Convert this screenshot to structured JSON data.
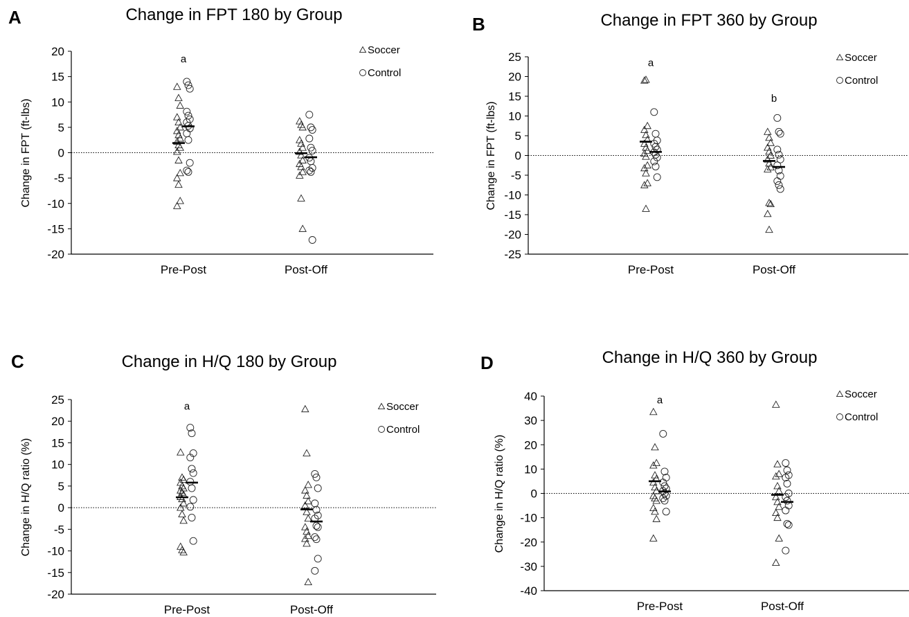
{
  "chart_data": [
    {
      "panel_label": "A",
      "type": "scatter",
      "title": "Change in FPT 180 by Group",
      "ylabel": "Change in FPT (ft-lbs)",
      "xlabel": "",
      "categories": [
        "Pre-Post",
        "Post-Off"
      ],
      "ylim": [
        -20,
        20
      ],
      "yticks": [
        20,
        15,
        10,
        5,
        0,
        -5,
        -10,
        -15,
        -20
      ],
      "zero_line": "dotted",
      "legend": {
        "placement": "top-right",
        "entries": [
          "Soccer",
          "Control"
        ],
        "markers": [
          "triangle",
          "circle"
        ]
      },
      "annotations": [
        {
          "category": "Pre-Post",
          "text": "a",
          "y": 18.5
        }
      ],
      "series": [
        {
          "name": "Soccer",
          "marker": "triangle",
          "values": [
            [
              13,
              10.8,
              9.3,
              7,
              6,
              5,
              4.3,
              3.5,
              2.8,
              2.2,
              1.5,
              1,
              0.2,
              -1.5,
              -4,
              -5,
              -6.3,
              -9.5,
              -10.5
            ],
            [
              6.2,
              5.5,
              5,
              2.5,
              1.8,
              1,
              0.2,
              -0.5,
              -1.5,
              -2.2,
              -2.8,
              -3.8,
              -4.5,
              -9,
              -15
            ]
          ],
          "means": [
            1.9,
            -0.1
          ]
        },
        {
          "name": "Control",
          "marker": "circle",
          "values": [
            [
              14,
              13.3,
              12.6,
              8.1,
              7.3,
              6.6,
              6,
              5.3,
              4.8,
              3.8,
              2.5,
              -2,
              -3.5,
              -3.8
            ],
            [
              7.5,
              5,
              4.5,
              2.8,
              1,
              0.4,
              -1,
              -1.7,
              -3,
              -3.5,
              -3.8,
              -17.2
            ]
          ],
          "means": [
            5.2,
            -0.9
          ]
        }
      ]
    },
    {
      "panel_label": "B",
      "type": "scatter",
      "title": "Change in FPT 360 by Group",
      "ylabel": "Change in FPT (ft-lbs)",
      "xlabel": "",
      "categories": [
        "Pre-Post",
        "Post-Off"
      ],
      "ylim": [
        -25,
        25
      ],
      "yticks": [
        25,
        20,
        15,
        10,
        5,
        0,
        -5,
        -10,
        -15,
        -20,
        -25
      ],
      "zero_line": "dotted",
      "legend": {
        "placement": "top-right",
        "entries": [
          "Soccer",
          "Control"
        ],
        "markers": [
          "triangle",
          "circle"
        ]
      },
      "annotations": [
        {
          "category": "Pre-Post",
          "text": "a",
          "y": 23.5
        },
        {
          "category": "Post-Off",
          "text": "b",
          "y": 14.5
        }
      ],
      "series": [
        {
          "name": "Soccer",
          "marker": "triangle",
          "values": [
            [
              19,
              19.2,
              7.5,
              6.5,
              5.2,
              4,
              3,
              2,
              1.2,
              0.5,
              -0.3,
              -2.5,
              -3.2,
              -4.5,
              -7,
              -7.5,
              -13.5
            ],
            [
              6,
              4.5,
              3.2,
              2,
              1,
              0,
              -1,
              -2,
              -3,
              -3.5,
              -12,
              -12.3,
              -14.8,
              -18.8
            ]
          ],
          "means": [
            3.5,
            -1.4
          ]
        },
        {
          "name": "Control",
          "marker": "circle",
          "values": [
            [
              11,
              5.5,
              3.8,
              3,
              2.2,
              1.5,
              0.8,
              0.2,
              -0.5,
              -1.5,
              -2.8,
              -5.5
            ],
            [
              9.5,
              6,
              5.5,
              1.5,
              0.2,
              -1,
              -2.5,
              -3.8,
              -5.2,
              -6.5,
              -7.5,
              -8.5
            ]
          ],
          "means": [
            0.9,
            -2.9
          ]
        }
      ]
    },
    {
      "panel_label": "C",
      "type": "scatter",
      "title": "Change in H/Q 180 by Group",
      "ylabel": "Change in H/Q ratio (%)",
      "xlabel": "",
      "categories": [
        "Pre-Post",
        "Post-Off"
      ],
      "ylim": [
        -20,
        25
      ],
      "yticks": [
        25,
        20,
        15,
        10,
        5,
        0,
        -5,
        -10,
        -15,
        -20
      ],
      "zero_line": "dotted",
      "legend": {
        "placement": "top-right",
        "entries": [
          "Soccer",
          "Control"
        ],
        "markers": [
          "triangle",
          "circle"
        ]
      },
      "annotations": [
        {
          "category": "Pre-Post",
          "text": "a",
          "y": 23.5
        }
      ],
      "series": [
        {
          "name": "Soccer",
          "marker": "triangle",
          "values": [
            [
              12.8,
              7,
              6.5,
              5.8,
              5,
              4.5,
              4,
              3.5,
              3,
              2.5,
              2,
              1,
              0,
              -1.5,
              -3,
              -9,
              -9.8,
              -10.3
            ],
            [
              22.8,
              12.6,
              5.3,
              4,
              2.8,
              1.5,
              0.5,
              -1,
              -2.5,
              -4.5,
              -5.5,
              -6.5,
              -7.2,
              -8.3,
              -17.2
            ]
          ],
          "means": [
            2.4,
            -0.4
          ]
        },
        {
          "name": "Control",
          "marker": "circle",
          "values": [
            [
              18.5,
              17.2,
              12.6,
              11.6,
              9,
              8,
              6,
              4.5,
              1.8,
              0.2,
              -2.3,
              -7.7
            ],
            [
              7.8,
              7,
              4.5,
              1,
              -0.5,
              -1.8,
              -2.5,
              -4.2,
              -4.5,
              -6.8,
              -7.3,
              -11.8,
              -14.6
            ]
          ],
          "means": [
            5.8,
            -3.2
          ]
        }
      ]
    },
    {
      "panel_label": "D",
      "type": "scatter",
      "title": "Change in H/Q 360 by Group",
      "ylabel": "Change in H/Q ratio (%)",
      "xlabel": "",
      "categories": [
        "Pre-Post",
        "Post-Off"
      ],
      "ylim": [
        -40,
        40
      ],
      "yticks": [
        40,
        30,
        20,
        10,
        0,
        -10,
        -20,
        -30,
        -40
      ],
      "zero_line": "dotted",
      "legend": {
        "placement": "top-right",
        "entries": [
          "Soccer",
          "Control"
        ],
        "markers": [
          "triangle",
          "circle"
        ]
      },
      "annotations": [
        {
          "category": "Pre-Post",
          "text": "a",
          "y": 38.5
        }
      ],
      "series": [
        {
          "name": "Soccer",
          "marker": "triangle",
          "values": [
            [
              33.5,
              19,
              12.5,
              11.5,
              7.5,
              6,
              4.5,
              2.5,
              1,
              -1,
              -2,
              -3,
              -6,
              -7.5,
              -10.5,
              -18.5
            ],
            [
              36.5,
              12,
              8,
              7,
              3,
              1,
              -1.5,
              -3.5,
              -5.5,
              -8,
              -10,
              -18.5,
              -28.5
            ]
          ],
          "means": [
            5,
            -0.6
          ]
        },
        {
          "name": "Control",
          "marker": "circle",
          "values": [
            [
              24.5,
              9,
              6.5,
              4.5,
              3,
              2,
              1,
              0,
              -1,
              -2,
              -3,
              -7.5
            ],
            [
              12.5,
              9.5,
              7.5,
              6.5,
              4,
              0,
              -1.5,
              -3,
              -5,
              -7,
              -12.5,
              -13,
              -23.5
            ]
          ],
          "means": [
            0.8,
            -3.5
          ]
        }
      ]
    }
  ]
}
